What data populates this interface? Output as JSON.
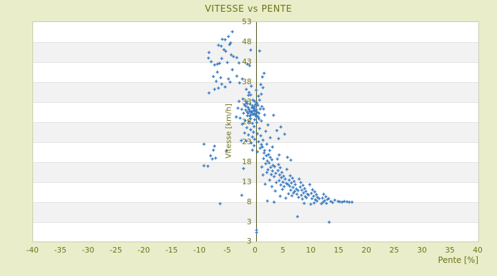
{
  "colors": {
    "background": "#e9edc9",
    "text_olive": "#6c7219",
    "axis_line": "#465014",
    "band_gray": "#f2f2f2",
    "plot_white": "#ffffff",
    "marker_blue": "#3a7cc2"
  },
  "chart_data": {
    "type": "scatter",
    "title": "VITESSE vs PENTE",
    "xlabel": "Pente [%]",
    "ylabel": "Vitesse [km/h]",
    "xlim": [
      -40,
      40
    ],
    "ylim": [
      -2,
      53
    ],
    "x_ticks": [
      -40,
      -35,
      -30,
      -25,
      -20,
      -15,
      -10,
      -5,
      0,
      5,
      10,
      15,
      20,
      25,
      30,
      35,
      40
    ],
    "y_ticks": [
      53,
      48,
      43,
      38,
      33,
      28,
      23,
      18,
      13,
      8,
      3
    ],
    "y_axis_bottom_label": "3",
    "grid": "horizontal-bands",
    "legend": "none",
    "marker": "plus",
    "points": [
      [
        -4.2,
        50.6
      ],
      [
        -4.9,
        49.4
      ],
      [
        -5.5,
        48.6
      ],
      [
        -6.0,
        48.7
      ],
      [
        -4.5,
        47.8
      ],
      [
        -4.7,
        47.4
      ],
      [
        -6.7,
        47.2
      ],
      [
        -6.2,
        47.0
      ],
      [
        -5.7,
        46.1
      ],
      [
        -5.4,
        45.7
      ],
      [
        -0.9,
        46.0
      ],
      [
        0.7,
        45.8
      ],
      [
        -8.4,
        45.4
      ],
      [
        -4.4,
        44.8
      ],
      [
        -4.0,
        44.4
      ],
      [
        -3.4,
        44.1
      ],
      [
        -6.1,
        43.9
      ],
      [
        -8.5,
        44.0
      ],
      [
        -8.0,
        43.1
      ],
      [
        -6.9,
        42.5
      ],
      [
        -7.4,
        42.3
      ],
      [
        -6.5,
        42.7
      ],
      [
        -5.1,
        42.9
      ],
      [
        -3.0,
        42.8
      ],
      [
        -1.5,
        42.5
      ],
      [
        -1.1,
        42.1
      ],
      [
        -4.2,
        41.1
      ],
      [
        -6.9,
        40.5
      ],
      [
        1.5,
        40.2
      ],
      [
        -3.4,
        39.5
      ],
      [
        -7.6,
        39.4
      ],
      [
        -6.3,
        39.1
      ],
      [
        -4.9,
        38.8
      ],
      [
        -2.4,
        38.8
      ],
      [
        -4.6,
        38.0
      ],
      [
        -7.1,
        38.2
      ],
      [
        1.2,
        39.3
      ],
      [
        -6.1,
        37.5
      ],
      [
        -5.5,
        36.8
      ],
      [
        -6.7,
        36.5
      ],
      [
        -7.4,
        36.2
      ],
      [
        -1.7,
        36.2
      ],
      [
        -1.2,
        35.4
      ],
      [
        -8.4,
        35.3
      ],
      [
        -0.8,
        37.0
      ],
      [
        0.1,
        36.0
      ],
      [
        -2.9,
        37.8
      ],
      [
        1.3,
        36.6
      ],
      [
        0.9,
        37.4
      ],
      [
        -1.3,
        34.7
      ],
      [
        -0.9,
        34.8
      ],
      [
        0.5,
        34.5
      ],
      [
        1.0,
        35.0
      ],
      [
        -0.5,
        33.5
      ],
      [
        0.7,
        33.5
      ],
      [
        -2.3,
        33.8
      ],
      [
        -3.0,
        33.2
      ],
      [
        -1.6,
        33.1
      ],
      [
        -0.2,
        33.2
      ],
      [
        0.2,
        32.8
      ],
      [
        -1.0,
        32.5
      ],
      [
        -2.0,
        32.3
      ],
      [
        -0.6,
        32.1
      ],
      [
        0.4,
        32.2
      ],
      [
        1.1,
        31.9
      ],
      [
        -1.4,
        31.7
      ],
      [
        -3.2,
        31.5
      ],
      [
        -2.5,
        31.2
      ],
      [
        -0.3,
        31.4
      ],
      [
        0.8,
        31.3
      ],
      [
        1.4,
        31.3
      ],
      [
        -1.8,
        31.0
      ],
      [
        -1.1,
        30.8
      ],
      [
        -0.1,
        30.7
      ],
      [
        0.3,
        30.5
      ],
      [
        -0.8,
        30.4
      ],
      [
        -2.2,
        30.2
      ],
      [
        -0.4,
        30.9
      ],
      [
        0.1,
        31.1
      ],
      [
        -0.7,
        31.6
      ],
      [
        -1.2,
        31.2
      ],
      [
        -0.2,
        30.1
      ],
      [
        -1.5,
        30.5
      ],
      [
        0.6,
        30.2
      ],
      [
        -0.9,
        29.8
      ],
      [
        0.2,
        29.6
      ],
      [
        1.6,
        29.8
      ],
      [
        3.2,
        29.7
      ],
      [
        -0.5,
        29.9
      ],
      [
        -1.5,
        29.6
      ],
      [
        0.1,
        29.4
      ],
      [
        -3.5,
        29.3
      ],
      [
        -2.8,
        29.0
      ],
      [
        -0.9,
        28.9
      ],
      [
        0.6,
        28.8
      ],
      [
        -0.2,
        28.6
      ],
      [
        -1.9,
        28.4
      ],
      [
        1.0,
        28.3
      ],
      [
        -1.2,
        28.1
      ],
      [
        0.2,
        27.9
      ],
      [
        -0.6,
        27.7
      ],
      [
        -2.4,
        27.5
      ],
      [
        2.2,
        27.3
      ],
      [
        4.5,
        26.8
      ],
      [
        -0.3,
        26.9
      ],
      [
        -1.6,
        26.6
      ],
      [
        0.7,
        26.4
      ],
      [
        -0.9,
        26.1
      ],
      [
        3.8,
        25.9
      ],
      [
        1.8,
        25.7
      ],
      [
        -0.4,
        25.5
      ],
      [
        -2.0,
        25.3
      ],
      [
        0.3,
        25.1
      ],
      [
        5.2,
        25.0
      ],
      [
        -1.3,
        24.8
      ],
      [
        0.9,
        24.6
      ],
      [
        -0.6,
        24.3
      ],
      [
        2.6,
        24.1
      ],
      [
        4.1,
        23.9
      ],
      [
        -0.2,
        23.7
      ],
      [
        1.3,
        23.5
      ],
      [
        -1.7,
        23.3
      ],
      [
        0.5,
        23.1
      ],
      [
        -2.6,
        23.4
      ],
      [
        -0.8,
        22.8
      ],
      [
        -0.45,
        30.0
      ],
      [
        -1.05,
        29.5
      ],
      [
        -0.15,
        29.9
      ],
      [
        -0.75,
        30.6
      ],
      [
        0.45,
        29.3
      ],
      [
        -1.35,
        30.2
      ],
      [
        -0.25,
        31.8
      ],
      [
        -1.85,
        32.0
      ],
      [
        -1.55,
        32.6
      ],
      [
        -0.05,
        32.4
      ],
      [
        1.0,
        22.4
      ],
      [
        -0.3,
        22.1
      ],
      [
        2.0,
        22.5
      ],
      [
        3.0,
        21.8
      ],
      [
        0.8,
        21.5
      ],
      [
        2.5,
        20.9
      ],
      [
        1.5,
        20.3
      ],
      [
        4.2,
        19.8
      ],
      [
        0.3,
        20.6
      ],
      [
        -0.6,
        21.0
      ],
      [
        5.7,
        19.2
      ],
      [
        6.3,
        18.5
      ],
      [
        1.2,
        21.8
      ],
      [
        1.6,
        20.9
      ],
      [
        1.9,
        19.6
      ],
      [
        1.4,
        18.9
      ],
      [
        2.1,
        18.3
      ],
      [
        1.8,
        17.6
      ],
      [
        2.3,
        19.9
      ],
      [
        2.6,
        19.2
      ],
      [
        2.9,
        18.6
      ],
      [
        2.4,
        17.8
      ],
      [
        3.1,
        17.2
      ],
      [
        2.7,
        16.7
      ],
      [
        3.4,
        16.9
      ],
      [
        2.2,
        16.1
      ],
      [
        3.0,
        15.8
      ],
      [
        3.6,
        15.2
      ],
      [
        2.8,
        14.9
      ],
      [
        3.3,
        14.4
      ],
      [
        4.1,
        17.4
      ],
      [
        4.4,
        16.6
      ],
      [
        4.0,
        15.9
      ],
      [
        4.7,
        15.4
      ],
      [
        4.3,
        14.8
      ],
      [
        5.0,
        14.5
      ],
      [
        4.6,
        14.1
      ],
      [
        5.3,
        13.8
      ],
      [
        4.2,
        13.4
      ],
      [
        4.9,
        13.0
      ],
      [
        5.5,
        12.7
      ],
      [
        4.5,
        12.3
      ],
      [
        5.1,
        11.9
      ],
      [
        5.8,
        12.4
      ],
      [
        6.2,
        14.6
      ],
      [
        6.6,
        14.0
      ],
      [
        6.0,
        13.5
      ],
      [
        6.9,
        13.2
      ],
      [
        6.4,
        12.8
      ],
      [
        7.1,
        12.4
      ],
      [
        6.1,
        12.0
      ],
      [
        6.7,
        11.7
      ],
      [
        7.3,
        11.3
      ],
      [
        6.3,
        11.0
      ],
      [
        7.0,
        10.7
      ],
      [
        7.6,
        10.9
      ],
      [
        6.8,
        10.3
      ],
      [
        7.4,
        10.0
      ],
      [
        8.1,
        12.9
      ],
      [
        8.5,
        12.2
      ],
      [
        8.0,
        11.8
      ],
      [
        8.8,
        11.4
      ],
      [
        8.3,
        11.0
      ],
      [
        9.0,
        10.7
      ],
      [
        8.6,
        10.3
      ],
      [
        9.3,
        10.0
      ],
      [
        8.2,
        9.7
      ],
      [
        8.9,
        9.4
      ],
      [
        9.5,
        9.8
      ],
      [
        9.1,
        9.1
      ],
      [
        8.4,
        8.8
      ],
      [
        10.2,
        11.1
      ],
      [
        10.6,
        10.6
      ],
      [
        10.0,
        10.2
      ],
      [
        10.9,
        9.9
      ],
      [
        10.4,
        9.5
      ],
      [
        11.1,
        9.2
      ],
      [
        10.1,
        8.9
      ],
      [
        10.7,
        8.6
      ],
      [
        11.4,
        8.9
      ],
      [
        11.0,
        8.3
      ],
      [
        12.2,
        10.0
      ],
      [
        12.6,
        9.4
      ],
      [
        12.0,
        9.0
      ],
      [
        12.9,
        8.7
      ],
      [
        12.4,
        8.4
      ],
      [
        13.1,
        8.9
      ],
      [
        13.5,
        8.2
      ],
      [
        12.1,
        8.0
      ],
      [
        3.9,
        18.8
      ],
      [
        5.6,
        16.2
      ],
      [
        7.8,
        13.8
      ],
      [
        9.7,
        12.4
      ],
      [
        2.0,
        15.4
      ],
      [
        1.1,
        16.8
      ],
      [
        1.3,
        14.8
      ],
      [
        2.5,
        13.5
      ],
      [
        3.7,
        12.9
      ],
      [
        1.7,
        12.5
      ],
      [
        2.9,
        11.9
      ],
      [
        4.8,
        11.2
      ],
      [
        3.5,
        10.8
      ],
      [
        5.9,
        10.1
      ],
      [
        6.5,
        9.6
      ],
      [
        7.7,
        9.2
      ],
      [
        5.4,
        9.0
      ],
      [
        4.4,
        9.5
      ],
      [
        14.2,
        8.5
      ],
      [
        14.8,
        8.2
      ],
      [
        15.1,
        8.1
      ],
      [
        15.5,
        8.0
      ],
      [
        15.9,
        8.2
      ],
      [
        16.4,
        8.1
      ],
      [
        16.8,
        8.0
      ],
      [
        17.3,
        8.0
      ],
      [
        13.8,
        7.9
      ],
      [
        12.7,
        7.7
      ],
      [
        11.8,
        7.6
      ],
      [
        10.5,
        7.8
      ],
      [
        9.9,
        7.5
      ],
      [
        8.7,
        7.7
      ],
      [
        2.1,
        8.3
      ],
      [
        3.3,
        8.0
      ],
      [
        -9.3,
        22.5
      ],
      [
        -7.4,
        22.0
      ],
      [
        -7.6,
        21.0
      ],
      [
        -5.3,
        20.8
      ],
      [
        -8.1,
        19.6
      ],
      [
        -7.8,
        18.8
      ],
      [
        -7.2,
        19.0
      ],
      [
        -9.3,
        17.1
      ],
      [
        -8.6,
        17.0
      ],
      [
        -2.2,
        16.4
      ],
      [
        -2.5,
        9.7
      ],
      [
        -6.4,
        7.6
      ],
      [
        7.5,
        4.4
      ],
      [
        13.2,
        3.0
      ],
      [
        0.15,
        1.0
      ],
      [
        0.15,
        0.4
      ]
    ]
  }
}
